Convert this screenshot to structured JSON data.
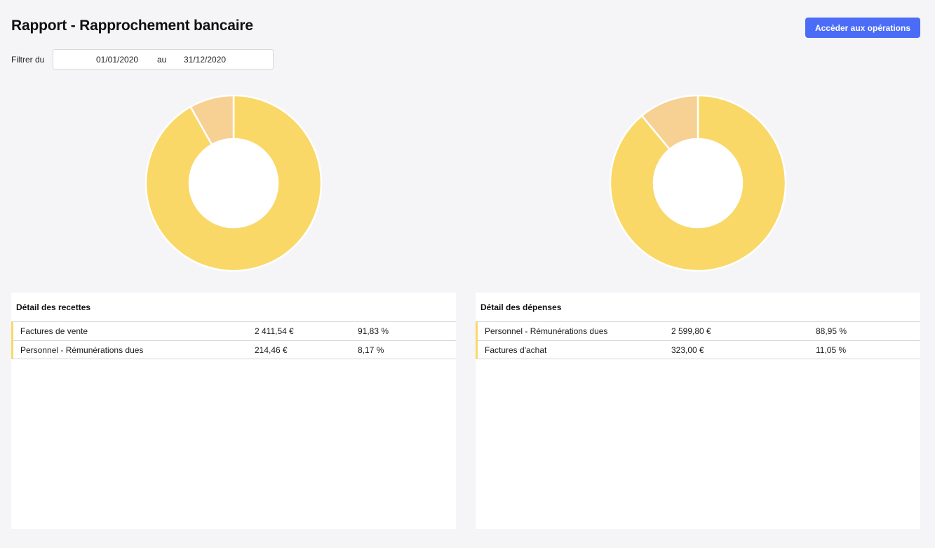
{
  "header": {
    "title": "Rapport - Rapprochement bancaire",
    "access_button_label": "Accèder aux opérations"
  },
  "filter": {
    "label": "Filtrer du",
    "date_from": "01/01/2020",
    "separator": "au",
    "date_to": "31/12/2020"
  },
  "colors": {
    "accent_button": "#4a6cf7",
    "slice_primary": "#f9d867",
    "slice_secondary": "#f7d093",
    "row_accent": "#f9d867"
  },
  "chart_data": [
    {
      "type": "pie",
      "title": "",
      "categories": [
        "Factures de vente",
        "Personnel - Rémunérations dues"
      ],
      "values": [
        91.83,
        8.17
      ],
      "colors": [
        "#f9d867",
        "#f7d093"
      ]
    },
    {
      "type": "pie",
      "title": "",
      "categories": [
        "Personnel - Rémunérations dues",
        "Factures d'achat"
      ],
      "values": [
        88.95,
        11.05
      ],
      "colors": [
        "#f9d867",
        "#f7d093"
      ]
    }
  ],
  "recettes": {
    "title": "Détail des recettes",
    "rows": [
      {
        "label": "Factures de vente",
        "amount": "2 411,54 €",
        "percent": "91,83 %"
      },
      {
        "label": "Personnel - Rémunérations dues",
        "amount": "214,46 €",
        "percent": "8,17 %"
      }
    ]
  },
  "depenses": {
    "title": "Détail des dépenses",
    "rows": [
      {
        "label": "Personnel - Rémunérations dues",
        "amount": "2 599,80 €",
        "percent": "88,95 %"
      },
      {
        "label": "Factures d'achat",
        "amount": "323,00 €",
        "percent": "11,05 %"
      }
    ]
  }
}
